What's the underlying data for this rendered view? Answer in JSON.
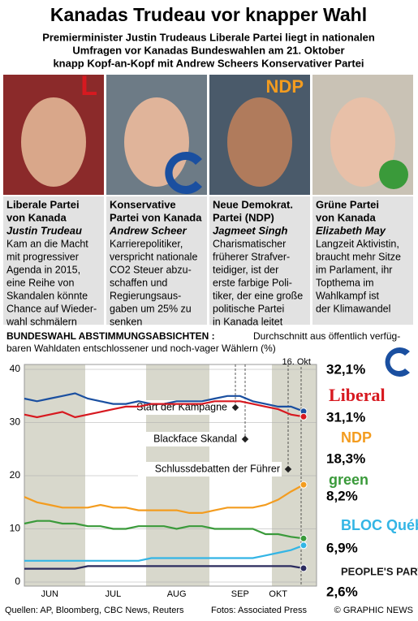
{
  "header": {
    "title": "Kanadas Trudeau vor knapper Wahl",
    "subtitle": [
      "Premierminister Justin Trudeaus Liberale Partei liegt in nationalen",
      "Umfragen vor Kanadas Bundeswahlen am 21. Oktober",
      "knapp Kopf-an-Kopf mit Andrew Scheers Konservativer Partei"
    ]
  },
  "panels": [
    {
      "logo": "L",
      "party": [
        "Liberale Partei",
        "von Kanada"
      ],
      "leader": "Justin Trudeau",
      "text": [
        "Kam an die Macht",
        "mit progressiver",
        "Agenda in 2015,",
        "eine Reihe von",
        "Skandalen könnte",
        "Chance auf Wieder-",
        "wahl schmälern"
      ]
    },
    {
      "logo": null,
      "party": [
        "Konservative",
        "Partei von Kanada"
      ],
      "leader": "Andrew Scheer",
      "text": [
        "Karrierepolitiker,",
        "verspricht nationale",
        "CO2 Steuer abzu-",
        "schaffen und",
        "Regierungsaus-",
        "gaben um 25% zu",
        "senken"
      ]
    },
    {
      "logo": "NDP",
      "party": [
        "Neue Demokrat.",
        "Partei (NDP)"
      ],
      "leader": "Jagmeet Singh",
      "text": [
        "Charismatischer",
        "früherer Strafver-",
        "teidiger, ist der",
        "erste farbige Poli-",
        "tiker, der eine große",
        "politische Partei",
        "in Kanada leitet"
      ]
    },
    {
      "logo": null,
      "party": [
        "Grüne Partei",
        "von Kanada"
      ],
      "leader": "Elizabeth May",
      "text": [
        "Langzeit Aktivistin,",
        "braucht mehr Sitze",
        "im Parlament, ihr",
        "Topthema im",
        "Wahlkampf ist",
        "der Klimawandel"
      ]
    }
  ],
  "chart_data": {
    "type": "line",
    "title": "BUNDESWAHL ABSTIMMUNGSABSICHTEN :",
    "subtitle": [
      "Durchschnitt aus öffentlich verfüg-",
      "baren Wahldaten entschlossener und noch-vager Wählern (%)"
    ],
    "categories": [
      null,
      null,
      "JUN",
      null,
      null,
      null,
      null,
      "JUL",
      null,
      null,
      null,
      null,
      "AUG",
      null,
      null,
      null,
      null,
      "SEP",
      null,
      null,
      "OKT",
      null,
      null
    ],
    "ylim": [
      0,
      40
    ],
    "yticks": [
      0,
      10,
      20,
      30,
      40
    ],
    "grid": true,
    "annotations": [
      "Start der Kampagne",
      "Blackface Skandal",
      "Schlussdebatten der Führer",
      "16. Okt"
    ],
    "series": [
      {
        "name": null,
        "color": "#1a4fa0",
        "values": [
          34.5,
          34,
          34.5,
          35,
          35.5,
          34.5,
          34,
          33.5,
          33.5,
          34,
          33.5,
          33.5,
          34,
          34,
          34,
          34.5,
          35,
          35,
          34,
          33.5,
          33,
          33,
          32.1
        ],
        "value_labels": [
          null,
          null,
          null,
          null,
          null,
          null,
          null,
          null,
          null,
          null,
          null,
          null,
          null,
          null,
          null,
          null,
          null,
          null,
          null,
          null,
          null,
          null,
          "32,1%"
        ]
      },
      {
        "name": "Liberal",
        "color": "#d71920",
        "values": [
          31.5,
          31,
          31.5,
          32,
          31,
          31.5,
          32,
          32.5,
          33,
          33,
          33.5,
          33.5,
          33.5,
          33.5,
          33.5,
          34,
          34,
          34,
          33.5,
          33,
          32.5,
          31.5,
          31.1
        ],
        "value_labels": [
          null,
          null,
          null,
          null,
          null,
          null,
          null,
          null,
          null,
          null,
          null,
          null,
          null,
          null,
          null,
          null,
          null,
          null,
          null,
          null,
          null,
          null,
          "31,1%"
        ]
      },
      {
        "name": "NDP",
        "color": "#f39c1f",
        "values": [
          16,
          15,
          14.5,
          14,
          14,
          14,
          14.5,
          14,
          14,
          13.5,
          13.5,
          13.5,
          13.5,
          13,
          13,
          13.5,
          14,
          14,
          14,
          14.5,
          15.5,
          17,
          18.3
        ],
        "value_labels": [
          null,
          null,
          null,
          null,
          null,
          null,
          null,
          null,
          null,
          null,
          null,
          null,
          null,
          null,
          null,
          null,
          null,
          null,
          null,
          null,
          null,
          null,
          "18,3%"
        ]
      },
      {
        "name": "green",
        "color": "#3a9a3a",
        "values": [
          11,
          11.5,
          11.5,
          11,
          11,
          10.5,
          10.5,
          10,
          10,
          10.5,
          10.5,
          10.5,
          10,
          10.5,
          10.5,
          10,
          10,
          10,
          10,
          9,
          9,
          8.5,
          8.2
        ],
        "value_labels": [
          null,
          null,
          null,
          null,
          null,
          null,
          null,
          null,
          null,
          null,
          null,
          null,
          null,
          null,
          null,
          null,
          null,
          null,
          null,
          null,
          null,
          null,
          "8,2%"
        ]
      },
      {
        "name": "BLOC Québécois",
        "color": "#33b5e5",
        "values": [
          4,
          4,
          4,
          4,
          4,
          4,
          4,
          4,
          4,
          4,
          4.5,
          4.5,
          4.5,
          4.5,
          4.5,
          4.5,
          4.5,
          4.5,
          4.5,
          5,
          5.5,
          6,
          6.9
        ],
        "value_labels": [
          null,
          null,
          null,
          null,
          null,
          null,
          null,
          null,
          null,
          null,
          null,
          null,
          null,
          null,
          null,
          null,
          null,
          null,
          null,
          null,
          null,
          null,
          "6,9%"
        ]
      },
      {
        "name": "PEOPLE'S PARTY",
        "color": "#2b2b5e",
        "values": [
          2.5,
          2.5,
          2.5,
          2.5,
          2.5,
          3,
          3,
          3,
          3,
          3,
          3,
          3,
          3,
          3,
          3,
          3,
          3,
          3,
          3,
          3,
          3,
          3,
          2.6
        ],
        "value_labels": [
          null,
          null,
          null,
          null,
          null,
          null,
          null,
          null,
          null,
          null,
          null,
          null,
          null,
          null,
          null,
          null,
          null,
          null,
          null,
          null,
          null,
          null,
          "2,6%"
        ]
      }
    ]
  },
  "footer": {
    "sources": "Quellen: AP, Bloomberg, CBC News, Reuters",
    "photos": "Fotos: Associated Press",
    "credit": "© GRAPHIC NEWS"
  }
}
